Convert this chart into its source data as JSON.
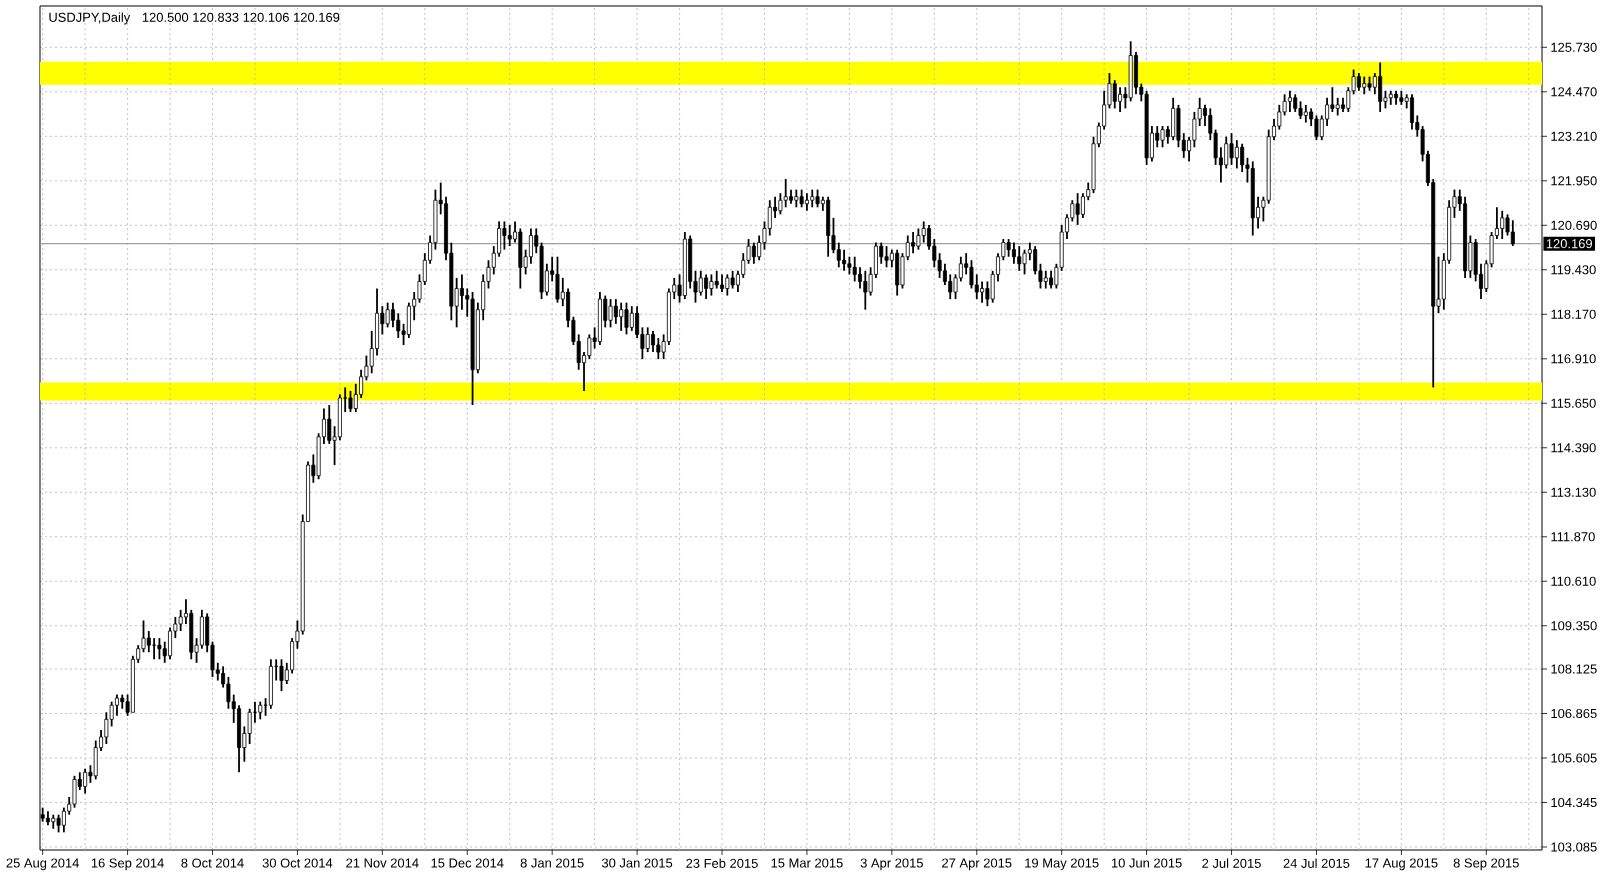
{
  "chart_data": {
    "type": "candlestick",
    "title": "USDJPY,Daily",
    "subtitle": "120.500 120.833 120.106 120.169",
    "categories": [
      "25 Aug 2014",
      null,
      null,
      null,
      null,
      null,
      null,
      null,
      null,
      null,
      null,
      null,
      null,
      null,
      null,
      null,
      "16 Sep 2014",
      null,
      null,
      null,
      null,
      null,
      null,
      null,
      null,
      null,
      null,
      null,
      null,
      null,
      null,
      null,
      "8 Oct 2014",
      null,
      null,
      null,
      null,
      null,
      null,
      null,
      null,
      null,
      null,
      null,
      null,
      null,
      null,
      null,
      "30 Oct 2014",
      null,
      null,
      null,
      null,
      null,
      null,
      null,
      null,
      null,
      null,
      null,
      null,
      null,
      null,
      null,
      "21 Nov 2014",
      null,
      null,
      null,
      null,
      null,
      null,
      null,
      null,
      null,
      null,
      null,
      null,
      null,
      null,
      null,
      "15 Dec 2014",
      null,
      null,
      null,
      null,
      null,
      null,
      null,
      null,
      null,
      null,
      null,
      null,
      null,
      null,
      null,
      "8 Jan 2015",
      null,
      null,
      null,
      null,
      null,
      null,
      null,
      null,
      null,
      null,
      null,
      null,
      null,
      null,
      null,
      "30 Jan 2015",
      null,
      null,
      null,
      null,
      null,
      null,
      null,
      null,
      null,
      null,
      null,
      null,
      null,
      null,
      null,
      "23 Feb 2015",
      null,
      null,
      null,
      null,
      null,
      null,
      null,
      null,
      null,
      null,
      null,
      null,
      null,
      null,
      null,
      "15 Mar 2015",
      null,
      null,
      null,
      null,
      null,
      null,
      null,
      null,
      null,
      null,
      null,
      null,
      null,
      null,
      null,
      "3 Apr 2015",
      null,
      null,
      null,
      null,
      null,
      null,
      null,
      null,
      null,
      null,
      null,
      null,
      null,
      null,
      null,
      "27 Apr 2015",
      null,
      null,
      null,
      null,
      null,
      null,
      null,
      null,
      null,
      null,
      null,
      null,
      null,
      null,
      null,
      "19 May 2015",
      null,
      null,
      null,
      null,
      null,
      null,
      null,
      null,
      null,
      null,
      null,
      null,
      null,
      null,
      null,
      "10 Jun 2015",
      null,
      null,
      null,
      null,
      null,
      null,
      null,
      null,
      null,
      null,
      null,
      null,
      null,
      null,
      null,
      "2 Jul 2015",
      null,
      null,
      null,
      null,
      null,
      null,
      null,
      null,
      null,
      null,
      null,
      null,
      null,
      null,
      null,
      "24 Jul 2015",
      null,
      null,
      null,
      null,
      null,
      null,
      null,
      null,
      null,
      null,
      null,
      null,
      null,
      null,
      null,
      "17 Aug 2015",
      null,
      null,
      null,
      null,
      null,
      null,
      null,
      null,
      null,
      null,
      null,
      null,
      null,
      null,
      null,
      "8 Sep 2015",
      null,
      null,
      null,
      null,
      null
    ],
    "ohlc": [
      [
        104.0,
        104.2,
        103.8,
        103.9
      ],
      [
        103.9,
        104.1,
        103.7,
        103.8
      ],
      [
        103.8,
        104.0,
        103.6,
        103.9
      ],
      [
        103.9,
        104.0,
        103.5,
        103.7
      ],
      [
        103.7,
        104.2,
        103.5,
        104.1
      ],
      [
        104.1,
        104.5,
        104.0,
        104.3
      ],
      [
        104.3,
        105.1,
        104.2,
        105.0
      ],
      [
        105.0,
        105.2,
        104.7,
        104.8
      ],
      [
        104.8,
        105.3,
        104.6,
        105.2
      ],
      [
        105.2,
        105.4,
        104.9,
        105.1
      ],
      [
        105.1,
        106.1,
        105.0,
        105.9
      ],
      [
        105.9,
        106.4,
        105.8,
        106.2
      ],
      [
        106.2,
        106.9,
        106.0,
        106.7
      ],
      [
        106.7,
        107.2,
        106.5,
        107.1
      ],
      [
        107.1,
        107.4,
        106.8,
        107.3
      ],
      [
        107.3,
        107.4,
        107.0,
        107.2
      ],
      [
        107.2,
        107.4,
        106.8,
        106.9
      ],
      [
        106.9,
        108.5,
        106.9,
        108.4
      ],
      [
        108.4,
        108.8,
        108.3,
        108.7
      ],
      [
        108.7,
        109.5,
        108.6,
        109.0
      ],
      [
        109.0,
        109.2,
        108.6,
        108.8
      ],
      [
        108.8,
        109.0,
        108.4,
        108.8
      ],
      [
        108.8,
        109.0,
        108.4,
        108.7
      ],
      [
        108.7,
        108.9,
        108.3,
        108.5
      ],
      [
        108.5,
        109.3,
        108.4,
        109.2
      ],
      [
        109.2,
        109.6,
        109.0,
        109.4
      ],
      [
        109.4,
        109.8,
        109.2,
        109.6
      ],
      [
        109.6,
        110.1,
        109.4,
        109.7
      ],
      [
        109.7,
        109.8,
        108.4,
        108.6
      ],
      [
        108.6,
        109.0,
        108.3,
        108.8
      ],
      [
        108.8,
        109.8,
        108.7,
        109.6
      ],
      [
        109.6,
        109.7,
        108.6,
        108.8
      ],
      [
        108.8,
        108.9,
        107.9,
        108.1
      ],
      [
        108.1,
        108.3,
        107.8,
        108.0
      ],
      [
        108.0,
        108.2,
        107.6,
        107.7
      ],
      [
        107.7,
        107.9,
        107.0,
        107.2
      ],
      [
        107.2,
        107.4,
        106.6,
        107.0
      ],
      [
        107.0,
        107.1,
        105.2,
        105.9
      ],
      [
        105.9,
        106.5,
        105.5,
        106.3
      ],
      [
        106.3,
        107.0,
        106.0,
        106.9
      ],
      [
        106.9,
        107.2,
        106.6,
        106.9
      ],
      [
        106.9,
        107.2,
        106.7,
        107.1
      ],
      [
        107.1,
        107.3,
        106.8,
        107.1
      ],
      [
        107.1,
        108.4,
        107.0,
        108.2
      ],
      [
        108.2,
        108.4,
        107.8,
        108.2
      ],
      [
        108.2,
        108.4,
        107.5,
        107.8
      ],
      [
        107.8,
        108.3,
        107.7,
        108.1
      ],
      [
        108.1,
        109.0,
        108.0,
        108.9
      ],
      [
        108.9,
        109.5,
        108.7,
        109.2
      ],
      [
        109.2,
        112.5,
        109.1,
        112.3
      ],
      [
        112.3,
        114.0,
        112.3,
        113.9
      ],
      [
        113.9,
        114.2,
        113.4,
        113.6
      ],
      [
        113.6,
        114.8,
        113.5,
        114.7
      ],
      [
        114.7,
        115.5,
        114.5,
        115.2
      ],
      [
        115.2,
        115.6,
        114.5,
        114.6
      ],
      [
        114.6,
        115.0,
        113.9,
        114.7
      ],
      [
        114.7,
        115.9,
        114.6,
        115.8
      ],
      [
        115.8,
        116.1,
        115.4,
        115.8
      ],
      [
        115.8,
        116.0,
        115.4,
        115.5
      ],
      [
        115.5,
        116.2,
        115.4,
        115.9
      ],
      [
        115.9,
        116.6,
        115.8,
        116.4
      ],
      [
        116.4,
        117.0,
        116.3,
        116.7
      ],
      [
        116.7,
        117.7,
        116.5,
        117.2
      ],
      [
        117.2,
        118.9,
        117.0,
        118.2
      ],
      [
        118.2,
        118.4,
        117.6,
        117.9
      ],
      [
        117.9,
        118.5,
        117.8,
        118.3
      ],
      [
        118.3,
        118.5,
        117.8,
        118.0
      ],
      [
        118.0,
        118.2,
        117.5,
        117.7
      ],
      [
        117.7,
        117.9,
        117.3,
        117.6
      ],
      [
        117.6,
        118.5,
        117.5,
        118.4
      ],
      [
        118.4,
        118.8,
        118.0,
        118.6
      ],
      [
        118.6,
        119.3,
        118.5,
        119.1
      ],
      [
        119.1,
        119.9,
        119.0,
        119.7
      ],
      [
        119.7,
        120.4,
        119.6,
        120.2
      ],
      [
        120.2,
        121.7,
        120.0,
        121.4
      ],
      [
        121.4,
        121.9,
        121.0,
        121.3
      ],
      [
        121.3,
        121.5,
        119.7,
        119.9
      ],
      [
        119.9,
        120.2,
        118.0,
        118.4
      ],
      [
        118.4,
        119.2,
        117.8,
        118.9
      ],
      [
        118.9,
        119.3,
        118.3,
        118.7
      ],
      [
        118.7,
        118.9,
        118.1,
        118.6
      ],
      [
        118.6,
        118.8,
        115.6,
        116.6
      ],
      [
        116.6,
        118.5,
        116.5,
        118.3
      ],
      [
        118.3,
        119.3,
        118.0,
        119.1
      ],
      [
        119.1,
        119.7,
        118.9,
        119.5
      ],
      [
        119.5,
        120.1,
        119.3,
        119.9
      ],
      [
        119.9,
        120.8,
        119.8,
        120.6
      ],
      [
        120.6,
        120.8,
        120.0,
        120.4
      ],
      [
        120.4,
        120.7,
        120.1,
        120.3
      ],
      [
        120.3,
        120.8,
        120.2,
        120.5
      ],
      [
        120.5,
        120.6,
        118.9,
        119.5
      ],
      [
        119.5,
        120.0,
        119.3,
        119.8
      ],
      [
        119.8,
        120.6,
        119.6,
        120.4
      ],
      [
        120.4,
        120.6,
        119.9,
        120.1
      ],
      [
        120.1,
        120.2,
        118.6,
        118.8
      ],
      [
        118.8,
        119.6,
        118.7,
        119.4
      ],
      [
        119.4,
        119.8,
        119.1,
        119.3
      ],
      [
        119.3,
        119.8,
        118.5,
        118.6
      ],
      [
        118.6,
        119.2,
        118.4,
        118.8
      ],
      [
        118.8,
        118.9,
        117.8,
        118.0
      ],
      [
        118.0,
        118.1,
        117.3,
        117.4
      ],
      [
        117.4,
        117.6,
        116.6,
        116.8
      ],
      [
        116.8,
        117.1,
        116.0,
        117.0
      ],
      [
        117.0,
        117.6,
        116.9,
        117.5
      ],
      [
        117.5,
        117.8,
        117.2,
        117.4
      ],
      [
        117.4,
        118.8,
        117.3,
        118.6
      ],
      [
        118.6,
        118.7,
        117.8,
        118.0
      ],
      [
        118.0,
        118.6,
        117.8,
        118.4
      ],
      [
        118.4,
        118.6,
        117.9,
        118.1
      ],
      [
        118.1,
        118.5,
        117.7,
        118.3
      ],
      [
        118.3,
        118.5,
        117.6,
        117.8
      ],
      [
        117.8,
        118.4,
        117.7,
        118.2
      ],
      [
        118.2,
        118.4,
        117.5,
        117.6
      ],
      [
        117.6,
        117.8,
        116.9,
        117.2
      ],
      [
        117.2,
        117.8,
        117.1,
        117.6
      ],
      [
        117.6,
        117.7,
        117.1,
        117.3
      ],
      [
        117.3,
        117.5,
        116.9,
        117.1
      ],
      [
        117.1,
        117.6,
        116.9,
        117.4
      ],
      [
        117.4,
        118.9,
        117.3,
        118.8
      ],
      [
        118.8,
        119.2,
        118.6,
        119.0
      ],
      [
        119.0,
        119.3,
        118.5,
        118.7
      ],
      [
        118.7,
        120.5,
        118.6,
        120.3
      ],
      [
        120.3,
        120.4,
        118.9,
        119.1
      ],
      [
        119.1,
        119.4,
        118.5,
        118.8
      ],
      [
        118.8,
        119.4,
        118.7,
        119.2
      ],
      [
        119.2,
        119.3,
        118.6,
        118.9
      ],
      [
        118.9,
        119.3,
        118.7,
        119.1
      ],
      [
        119.1,
        119.4,
        118.9,
        119.0
      ],
      [
        119.0,
        119.3,
        118.8,
        118.9
      ],
      [
        118.9,
        119.3,
        118.7,
        119.2
      ],
      [
        119.2,
        119.4,
        118.9,
        119.0
      ],
      [
        119.0,
        119.4,
        118.8,
        119.3
      ],
      [
        119.3,
        119.9,
        119.2,
        119.7
      ],
      [
        119.7,
        120.3,
        119.6,
        120.1
      ],
      [
        120.1,
        120.2,
        119.6,
        119.8
      ],
      [
        119.8,
        120.4,
        119.7,
        120.2
      ],
      [
        120.2,
        120.8,
        120.0,
        120.6
      ],
      [
        120.6,
        121.4,
        120.4,
        121.2
      ],
      [
        121.2,
        121.5,
        120.9,
        121.1
      ],
      [
        121.1,
        121.6,
        121.0,
        121.4
      ],
      [
        121.4,
        122.0,
        121.2,
        121.5
      ],
      [
        121.5,
        121.7,
        121.3,
        121.4
      ],
      [
        121.4,
        121.7,
        121.2,
        121.5
      ],
      [
        121.5,
        121.7,
        121.2,
        121.3
      ],
      [
        121.3,
        121.6,
        121.1,
        121.4
      ],
      [
        121.4,
        121.7,
        121.2,
        121.5
      ],
      [
        121.5,
        121.7,
        121.2,
        121.3
      ],
      [
        121.3,
        121.5,
        121.1,
        121.4
      ],
      [
        121.4,
        121.5,
        119.8,
        120.4
      ],
      [
        120.4,
        120.9,
        119.9,
        120.0
      ],
      [
        120.0,
        120.2,
        119.5,
        119.7
      ],
      [
        119.7,
        120.0,
        119.4,
        119.6
      ],
      [
        119.6,
        119.8,
        119.3,
        119.5
      ],
      [
        119.5,
        119.8,
        119.1,
        119.3
      ],
      [
        119.3,
        119.5,
        118.9,
        119.1
      ],
      [
        119.1,
        119.4,
        118.3,
        118.8
      ],
      [
        118.8,
        119.5,
        118.7,
        119.3
      ],
      [
        119.3,
        120.2,
        119.2,
        120.1
      ],
      [
        120.1,
        120.2,
        119.6,
        119.8
      ],
      [
        119.8,
        120.1,
        119.5,
        119.7
      ],
      [
        119.7,
        120.0,
        119.5,
        119.9
      ],
      [
        119.9,
        120.0,
        118.7,
        119.0
      ],
      [
        119.0,
        119.9,
        118.9,
        119.8
      ],
      [
        119.8,
        120.4,
        119.7,
        120.2
      ],
      [
        120.2,
        120.5,
        119.9,
        120.1
      ],
      [
        120.1,
        120.6,
        120.0,
        120.4
      ],
      [
        120.4,
        120.8,
        120.2,
        120.6
      ],
      [
        120.6,
        120.7,
        120.0,
        120.1
      ],
      [
        120.1,
        120.3,
        119.5,
        119.7
      ],
      [
        119.7,
        119.9,
        119.2,
        119.4
      ],
      [
        119.4,
        119.6,
        119.0,
        119.1
      ],
      [
        119.1,
        119.3,
        118.6,
        118.8
      ],
      [
        118.8,
        119.3,
        118.6,
        119.2
      ],
      [
        119.2,
        119.8,
        119.1,
        119.6
      ],
      [
        119.6,
        119.9,
        119.3,
        119.5
      ],
      [
        119.5,
        119.7,
        118.9,
        119.0
      ],
      [
        119.0,
        119.3,
        118.6,
        118.8
      ],
      [
        118.8,
        119.1,
        118.5,
        118.9
      ],
      [
        118.9,
        119.1,
        118.4,
        118.6
      ],
      [
        118.6,
        119.4,
        118.5,
        119.3
      ],
      [
        119.3,
        119.9,
        119.1,
        119.8
      ],
      [
        119.8,
        120.3,
        119.7,
        120.2
      ],
      [
        120.2,
        120.3,
        119.8,
        120.0
      ],
      [
        120.0,
        120.2,
        119.6,
        119.8
      ],
      [
        119.8,
        120.1,
        119.4,
        119.6
      ],
      [
        119.6,
        120.0,
        119.3,
        119.9
      ],
      [
        119.9,
        120.2,
        119.7,
        120.0
      ],
      [
        120.0,
        120.1,
        119.3,
        119.4
      ],
      [
        119.4,
        119.6,
        118.9,
        119.1
      ],
      [
        119.1,
        119.4,
        118.9,
        119.2
      ],
      [
        119.2,
        119.4,
        118.9,
        119.0
      ],
      [
        119.0,
        119.6,
        118.9,
        119.5
      ],
      [
        119.5,
        120.7,
        119.4,
        120.5
      ],
      [
        120.5,
        121.0,
        120.3,
        120.9
      ],
      [
        120.9,
        121.4,
        120.8,
        121.3
      ],
      [
        121.3,
        121.6,
        120.7,
        121.0
      ],
      [
        121.0,
        121.6,
        120.9,
        121.5
      ],
      [
        121.5,
        121.9,
        121.4,
        121.7
      ],
      [
        121.7,
        123.2,
        121.6,
        123.0
      ],
      [
        123.0,
        123.6,
        122.9,
        123.5
      ],
      [
        123.5,
        124.5,
        123.4,
        124.1
      ],
      [
        124.1,
        125.0,
        124.0,
        124.7
      ],
      [
        124.7,
        124.8,
        124.0,
        124.2
      ],
      [
        124.2,
        124.6,
        123.9,
        124.4
      ],
      [
        124.4,
        124.6,
        124.0,
        124.3
      ],
      [
        124.3,
        125.9,
        124.2,
        125.5
      ],
      [
        125.5,
        125.6,
        124.4,
        124.6
      ],
      [
        124.6,
        124.7,
        124.2,
        124.4
      ],
      [
        124.4,
        124.5,
        122.4,
        122.6
      ],
      [
        122.6,
        123.5,
        122.5,
        123.3
      ],
      [
        123.3,
        123.5,
        122.9,
        123.1
      ],
      [
        123.1,
        123.5,
        122.9,
        123.4
      ],
      [
        123.4,
        123.5,
        123.0,
        123.2
      ],
      [
        123.2,
        124.3,
        123.1,
        124.0
      ],
      [
        124.0,
        124.1,
        122.9,
        123.1
      ],
      [
        123.1,
        123.3,
        122.6,
        122.8
      ],
      [
        122.8,
        123.2,
        122.5,
        123.1
      ],
      [
        123.1,
        123.9,
        122.9,
        123.7
      ],
      [
        123.7,
        124.3,
        123.5,
        124.0
      ],
      [
        124.0,
        124.1,
        123.5,
        123.8
      ],
      [
        123.8,
        124.0,
        123.1,
        123.3
      ],
      [
        123.3,
        123.4,
        122.4,
        122.6
      ],
      [
        122.6,
        122.9,
        121.9,
        122.4
      ],
      [
        122.4,
        123.2,
        122.3,
        123.0
      ],
      [
        123.0,
        123.3,
        122.4,
        122.6
      ],
      [
        122.6,
        123.1,
        122.3,
        122.9
      ],
      [
        122.9,
        123.0,
        122.2,
        122.4
      ],
      [
        122.4,
        122.6,
        121.9,
        122.3
      ],
      [
        122.3,
        122.5,
        120.4,
        120.9
      ],
      [
        120.9,
        121.5,
        120.6,
        121.2
      ],
      [
        121.2,
        121.5,
        120.8,
        121.4
      ],
      [
        121.4,
        123.4,
        121.3,
        123.2
      ],
      [
        123.2,
        123.7,
        123.1,
        123.5
      ],
      [
        123.5,
        124.1,
        123.4,
        123.9
      ],
      [
        123.9,
        124.4,
        123.8,
        124.2
      ],
      [
        124.2,
        124.5,
        123.9,
        124.3
      ],
      [
        124.3,
        124.4,
        123.9,
        124.0
      ],
      [
        124.0,
        124.2,
        123.7,
        123.8
      ],
      [
        123.8,
        124.1,
        123.6,
        123.9
      ],
      [
        123.9,
        124.0,
        123.5,
        123.7
      ],
      [
        123.7,
        123.8,
        123.1,
        123.2
      ],
      [
        123.2,
        123.8,
        123.1,
        123.7
      ],
      [
        123.7,
        124.3,
        123.5,
        124.1
      ],
      [
        124.1,
        124.6,
        123.9,
        124.0
      ],
      [
        124.0,
        124.3,
        123.8,
        124.1
      ],
      [
        124.1,
        124.3,
        123.9,
        124.0
      ],
      [
        124.0,
        124.6,
        123.9,
        124.5
      ],
      [
        124.5,
        125.1,
        124.4,
        124.9
      ],
      [
        124.9,
        125.0,
        124.5,
        124.6
      ],
      [
        124.6,
        124.9,
        124.4,
        124.7
      ],
      [
        124.7,
        124.9,
        124.5,
        124.6
      ],
      [
        124.6,
        125.0,
        124.4,
        124.9
      ],
      [
        124.9,
        125.3,
        123.9,
        124.2
      ],
      [
        124.2,
        124.5,
        124.0,
        124.3
      ],
      [
        124.3,
        124.5,
        124.1,
        124.4
      ],
      [
        124.4,
        124.5,
        124.1,
        124.3
      ],
      [
        124.3,
        124.5,
        124.1,
        124.2
      ],
      [
        124.2,
        124.4,
        124.0,
        124.3
      ],
      [
        124.3,
        124.4,
        123.4,
        123.6
      ],
      [
        123.6,
        123.8,
        123.2,
        123.4
      ],
      [
        123.4,
        123.5,
        122.5,
        122.7
      ],
      [
        122.7,
        122.8,
        121.8,
        121.9
      ],
      [
        121.9,
        122.0,
        116.1,
        118.4
      ],
      [
        118.4,
        119.8,
        118.2,
        118.6
      ],
      [
        118.6,
        119.9,
        118.3,
        119.7
      ],
      [
        119.7,
        121.4,
        119.6,
        121.2
      ],
      [
        121.2,
        121.7,
        120.9,
        121.5
      ],
      [
        121.5,
        121.7,
        121.1,
        121.3
      ],
      [
        121.3,
        121.5,
        119.2,
        119.4
      ],
      [
        119.4,
        120.4,
        119.2,
        120.2
      ],
      [
        120.2,
        120.3,
        119.1,
        119.3
      ],
      [
        119.3,
        119.6,
        118.6,
        118.9
      ],
      [
        118.9,
        119.7,
        118.8,
        119.6
      ],
      [
        119.6,
        120.5,
        119.5,
        120.4
      ],
      [
        120.4,
        121.2,
        120.3,
        120.6
      ],
      [
        120.6,
        121.1,
        120.3,
        120.9
      ],
      [
        120.9,
        121.0,
        120.4,
        120.5
      ],
      [
        120.5,
        120.833,
        120.106,
        120.169
      ]
    ],
    "color": "#000000",
    "ylim": [
      103.0,
      126.9
    ],
    "yticks": [
      {
        "value": 103.085,
        "label": "103.085"
      },
      {
        "value": 104.345,
        "label": "104.345"
      },
      {
        "value": 105.605,
        "label": "105.605"
      },
      {
        "value": 106.865,
        "label": "106.865"
      },
      {
        "value": 108.125,
        "label": "108.125"
      },
      {
        "value": 109.35,
        "label": "109.350"
      },
      {
        "value": 110.61,
        "label": "110.610"
      },
      {
        "value": 111.87,
        "label": "111.870"
      },
      {
        "value": 113.13,
        "label": "113.130"
      },
      {
        "value": 114.39,
        "label": "114.390"
      },
      {
        "value": 115.65,
        "label": "115.650"
      },
      {
        "value": 116.91,
        "label": "116.910"
      },
      {
        "value": 118.17,
        "label": "118.170"
      },
      {
        "value": 119.43,
        "label": "119.430"
      },
      {
        "value": 120.69,
        "label": "120.690"
      },
      {
        "value": 121.95,
        "label": "121.950"
      },
      {
        "value": 123.21,
        "label": "123.210"
      },
      {
        "value": 124.47,
        "label": "124.470"
      },
      {
        "value": 125.73,
        "label": "125.730"
      }
    ],
    "grid": true,
    "ref_lines": [
      {
        "axis": "y",
        "value": 120.169,
        "label": "120.169",
        "color": "#a0a0a0"
      }
    ],
    "bands": [
      {
        "axis": "y",
        "from": 124.67,
        "to": 125.32,
        "color": "#ffff00"
      },
      {
        "axis": "y",
        "from": 115.73,
        "to": 116.24,
        "color": "#ffff00"
      }
    ]
  }
}
